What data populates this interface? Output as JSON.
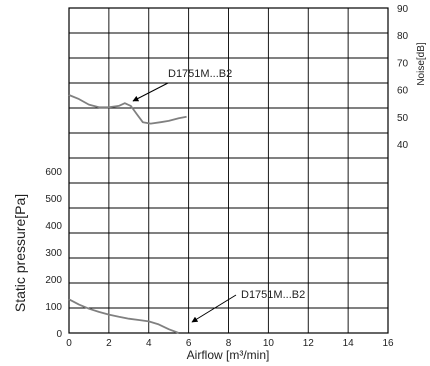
{
  "chart_data": {
    "type": "line",
    "x_axis": {
      "label": "Airflow [m³/min]",
      "range": [
        0,
        16
      ],
      "ticks": [
        0,
        2,
        4,
        6,
        8,
        10,
        12,
        14,
        16
      ]
    },
    "left_axis": {
      "label": "Static pressure[Pa]",
      "range": [
        0,
        600
      ],
      "ticks": [
        0,
        100,
        200,
        300,
        400,
        500,
        600
      ]
    },
    "right_axis": {
      "label": "Noise[dB]",
      "range": [
        40,
        90
      ],
      "ticks": [
        40,
        50,
        60,
        70,
        80,
        90
      ]
    },
    "grid": true,
    "series": [
      {
        "name": "D1751M...B2",
        "axis": "right",
        "color": "#808080",
        "x": [
          0,
          0.5,
          1,
          1.5,
          2,
          2.5,
          2.8,
          3.1,
          3.4,
          3.7,
          4.1,
          4.6,
          5.0,
          5.5,
          5.9
        ],
        "y": [
          58,
          56.5,
          54.5,
          53.5,
          53.5,
          54,
          55,
          54,
          51,
          48,
          47.5,
          48,
          48.5,
          49.5,
          50
        ]
      },
      {
        "name": "D1751M...B2",
        "axis": "left",
        "color": "#808080",
        "x": [
          0,
          0.5,
          1,
          1.5,
          2,
          2.5,
          3,
          3.5,
          4,
          4.5,
          5,
          5.5
        ],
        "y": [
          125,
          105,
          90,
          78,
          68,
          60,
          53,
          48,
          43,
          32,
          14,
          0
        ]
      }
    ],
    "annotations": [
      {
        "text": "D1751M...B2",
        "series": 0,
        "at_x": 2.8
      },
      {
        "text": "D1751M...B2",
        "series": 1,
        "at_x": 4.7
      }
    ]
  }
}
